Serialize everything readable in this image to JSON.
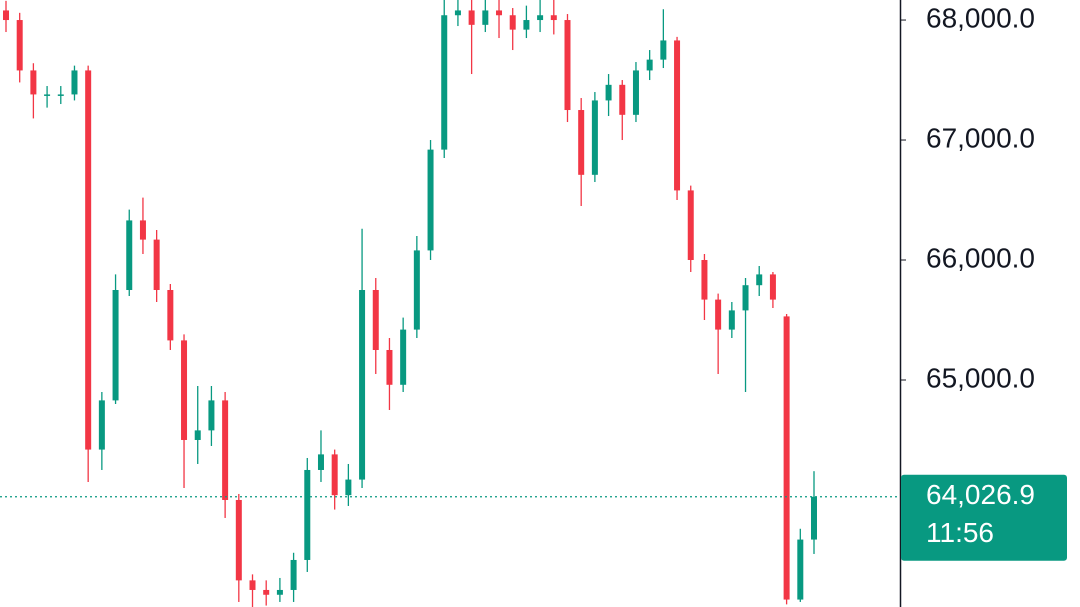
{
  "chart_data": {
    "type": "candlestick",
    "open": [
      68080,
      68000,
      67580,
      67380,
      67380,
      67380,
      67580,
      64420,
      64830,
      65750,
      66330,
      66170,
      65750,
      65330,
      64500,
      64580,
      64830,
      64000,
      63330,
      63250,
      63210,
      63250,
      63500,
      64250,
      64380,
      64040,
      64170,
      65750,
      65250,
      64960,
      65420,
      66080,
      66920,
      68040,
      68080,
      67960,
      68080,
      68040,
      67920,
      68000,
      68040,
      68000,
      67250,
      66710,
      67330,
      67460,
      67210,
      67580,
      67670,
      67830,
      66580,
      66000,
      65670,
      65420,
      65580,
      65790,
      65880,
      65530,
      63170,
      63670
    ],
    "high": [
      68160,
      68060,
      67640,
      67450,
      67450,
      67620,
      67620,
      64900,
      65880,
      66420,
      66520,
      66250,
      65800,
      65380,
      64950,
      64950,
      64900,
      64050,
      63380,
      63330,
      63350,
      63560,
      64350,
      64580,
      64420,
      64300,
      66260,
      65850,
      65350,
      65520,
      66200,
      67000,
      68170,
      68170,
      68170,
      68170,
      68170,
      68100,
      68120,
      68170,
      68170,
      68050,
      67350,
      67400,
      67550,
      67500,
      67650,
      67750,
      68090,
      67860,
      66620,
      66050,
      65720,
      65650,
      65850,
      65950,
      65900,
      65550,
      63760,
      64240
    ],
    "low": [
      67900,
      67480,
      67180,
      67270,
      67300,
      67330,
      64150,
      64250,
      64800,
      65700,
      66050,
      65650,
      65250,
      64100,
      64300,
      64450,
      63850,
      63150,
      63100,
      63120,
      63150,
      63150,
      63400,
      64150,
      63920,
      63950,
      64100,
      65050,
      64750,
      64900,
      65350,
      66000,
      66850,
      67950,
      67550,
      67900,
      67850,
      67750,
      67850,
      67900,
      67880,
      67150,
      66450,
      66650,
      67200,
      67000,
      67150,
      67500,
      67600,
      66500,
      65900,
      65500,
      65050,
      65350,
      64900,
      65700,
      65600,
      63130,
      63150,
      63550
    ],
    "close": [
      68000,
      67580,
      67380,
      67380,
      67380,
      67580,
      64420,
      64830,
      65750,
      66330,
      66170,
      65750,
      65330,
      64500,
      64580,
      64830,
      64000,
      63330,
      63250,
      63210,
      63250,
      63500,
      64250,
      64380,
      64040,
      64170,
      65750,
      65250,
      64960,
      65420,
      66080,
      66920,
      68040,
      68080,
      67960,
      68080,
      68040,
      67920,
      68000,
      68040,
      68000,
      67250,
      66710,
      67330,
      67460,
      67210,
      67580,
      67670,
      67830,
      66580,
      66000,
      65670,
      65420,
      65580,
      65790,
      65880,
      65670,
      63170,
      63670,
      64026.9
    ],
    "up_color": "#089981",
    "down_color": "#f23645",
    "ylim": [
      63108,
      68167
    ],
    "yticks": [
      {
        "value": 68000,
        "label": "68,000.0"
      },
      {
        "value": 67000,
        "label": "67,000.0"
      },
      {
        "value": 66000,
        "label": "66,000.0"
      },
      {
        "value": 65000,
        "label": "65,000.0"
      }
    ],
    "last_price": {
      "value": 64026.9,
      "label": "64,026.9"
    },
    "countdown": "11:56"
  }
}
